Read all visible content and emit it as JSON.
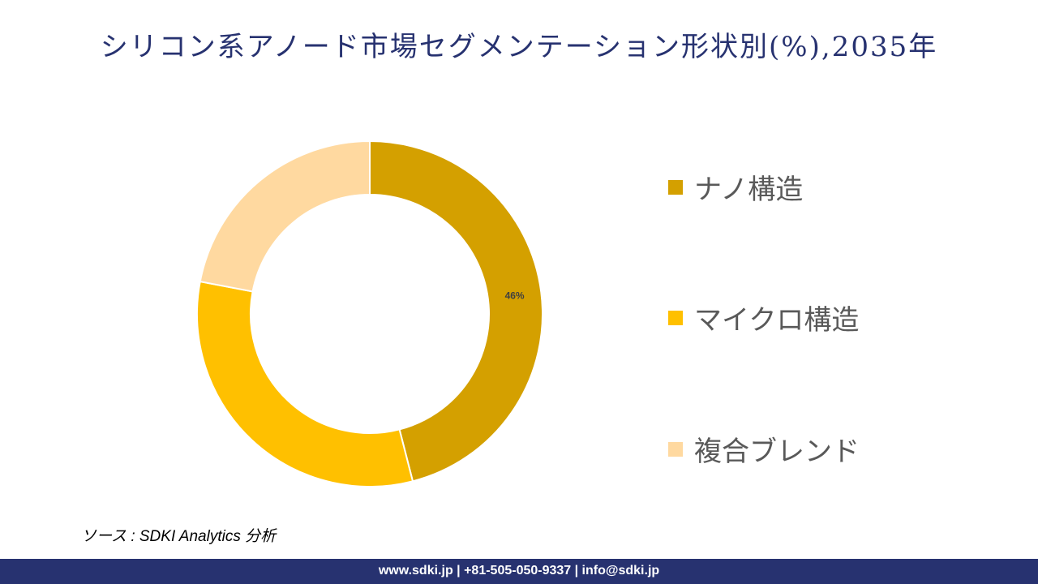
{
  "title": "シリコン系アノード市場セグメンテーション形状別(%),2035年",
  "chart_data": {
    "type": "pie",
    "style": "donut",
    "title": "シリコン系アノード市場セグメンテーション形状別(%),2035年",
    "categories": [
      "ナノ構造",
      "マイクロ構造",
      "複合ブレンド"
    ],
    "values": [
      46,
      32,
      22
    ],
    "data_labels": [
      "46%",
      "",
      ""
    ],
    "colors": [
      "#D4A000",
      "#FFC000",
      "#FFD9A0"
    ],
    "legend_position": "right"
  },
  "source": "ソース : SDKI Analytics 分析",
  "footer": "www.sdki.jp | +81-505-050-9337 | info@sdki.jp"
}
